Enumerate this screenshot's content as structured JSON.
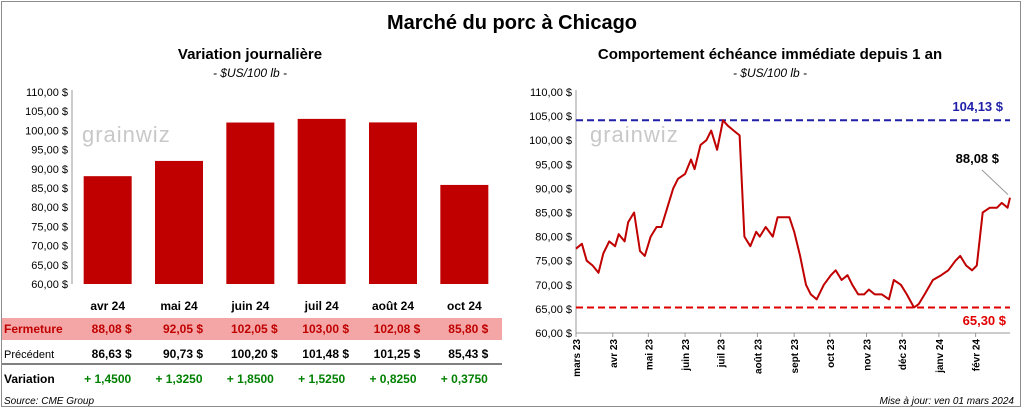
{
  "title": "Marché du porc à Chicago",
  "footer": {
    "source": "Source: CME Group",
    "updated": "Mise à jour: ven 01 mars 2024"
  },
  "watermark": "grainwiz",
  "colors": {
    "bar": "#c00000",
    "line": "#c00000",
    "high": "#1f1fa8",
    "low": "#e00000",
    "fermeture_bg": "#f4a6a6",
    "positive": "#008000"
  },
  "chart_data": [
    {
      "type": "bar",
      "title": "Variation journalière",
      "subtitle": "- $US/100 lb -",
      "categories": [
        "avr 24",
        "mai 24",
        "juin 24",
        "juil 24",
        "août 24",
        "oct 24"
      ],
      "values": [
        88.08,
        92.05,
        102.05,
        103.0,
        102.08,
        85.8
      ],
      "ylim": [
        60,
        110
      ],
      "yticks": [
        "60,00 $",
        "65,00 $",
        "70,00 $",
        "75,00 $",
        "80,00 $",
        "85,00 $",
        "90,00 $",
        "95,00 $",
        "100,00 $",
        "105,00 $",
        "110,00 $"
      ],
      "table": {
        "rows": [
          {
            "label": "Fermeture",
            "values": [
              "88,08",
              "92,05",
              "102,05",
              "103,00",
              "102,08",
              "85,80"
            ],
            "unit": "$"
          },
          {
            "label": "Précédent",
            "values": [
              "86,63",
              "90,73",
              "100,20",
              "101,48",
              "101,25",
              "85,43"
            ],
            "unit": "$"
          },
          {
            "label": "Variation",
            "values": [
              "+ 1,4500",
              "+ 1,3250",
              "+ 1,8500",
              "+ 1,5250",
              "+ 0,8250",
              "+ 0,3750"
            ],
            "unit": ""
          }
        ]
      }
    },
    {
      "type": "line",
      "title": "Comportement  échéance immédiate depuis 1 an",
      "subtitle": "- $US/100 lb -",
      "ylim": [
        60,
        110
      ],
      "yticks": [
        "60,00 $",
        "65,00 $",
        "70,00 $",
        "75,00 $",
        "80,00 $",
        "85,00 $",
        "90,00 $",
        "95,00 $",
        "100,00 $",
        "105,00 $",
        "110,00 $"
      ],
      "xticks": [
        "mars 23",
        "avr 23",
        "mai 23",
        "juin 23",
        "juil 23",
        "août 23",
        "sept 23",
        "oct 23",
        "nov 23",
        "déc 23",
        "janv 24",
        "févr 24"
      ],
      "x": [
        "2023-03-01",
        "2023-03-06",
        "2023-03-10",
        "2023-03-15",
        "2023-03-20",
        "2023-03-24",
        "2023-03-29",
        "2023-04-03",
        "2023-04-06",
        "2023-04-11",
        "2023-04-14",
        "2023-04-19",
        "2023-04-24",
        "2023-04-28",
        "2023-05-03",
        "2023-05-08",
        "2023-05-12",
        "2023-05-17",
        "2023-05-22",
        "2023-05-26",
        "2023-06-01",
        "2023-06-06",
        "2023-06-09",
        "2023-06-14",
        "2023-06-19",
        "2023-06-23",
        "2023-06-28",
        "2023-07-03",
        "2023-07-07",
        "2023-07-12",
        "2023-07-17",
        "2023-07-21",
        "2023-07-26",
        "2023-07-31",
        "2023-08-03",
        "2023-08-08",
        "2023-08-14",
        "2023-08-18",
        "2023-08-23",
        "2023-08-28",
        "2023-09-01",
        "2023-09-06",
        "2023-09-11",
        "2023-09-15",
        "2023-09-20",
        "2023-09-26",
        "2023-10-02",
        "2023-10-06",
        "2023-10-11",
        "2023-10-16",
        "2023-10-20",
        "2023-10-25",
        "2023-10-30",
        "2023-11-03",
        "2023-11-08",
        "2023-11-14",
        "2023-11-20",
        "2023-11-24",
        "2023-11-30",
        "2023-12-05",
        "2023-12-11",
        "2023-12-15",
        "2023-12-20",
        "2023-12-27",
        "2024-01-03",
        "2024-01-09",
        "2024-01-15",
        "2024-01-19",
        "2024-01-24",
        "2024-01-29",
        "2024-02-02",
        "2024-02-07",
        "2024-02-13",
        "2024-02-19",
        "2024-02-23",
        "2024-02-28",
        "2024-03-01"
      ],
      "values": [
        77.5,
        78.5,
        75,
        74,
        72.5,
        76.5,
        79,
        78,
        80.5,
        79,
        83,
        85,
        77,
        76,
        80,
        82,
        82,
        86,
        90,
        92,
        93,
        96,
        94,
        99,
        100,
        102,
        98,
        104.13,
        103,
        102,
        101,
        80,
        78,
        81,
        80,
        82,
        80,
        84,
        84,
        84,
        81,
        76,
        70,
        68,
        67,
        70,
        72,
        73,
        71,
        72,
        70,
        68,
        68,
        69,
        68,
        68,
        67,
        71,
        70,
        68,
        65.3,
        66,
        68,
        71,
        72,
        73,
        75,
        76,
        74,
        73,
        74,
        85,
        86,
        86,
        87,
        86,
        88.08
      ],
      "annotations": {
        "high_label": "104,13 $",
        "high": 104.13,
        "low_label": "65,30 $",
        "low": 65.3,
        "last_label": "88,08 $",
        "last": 88.08
      }
    }
  ]
}
